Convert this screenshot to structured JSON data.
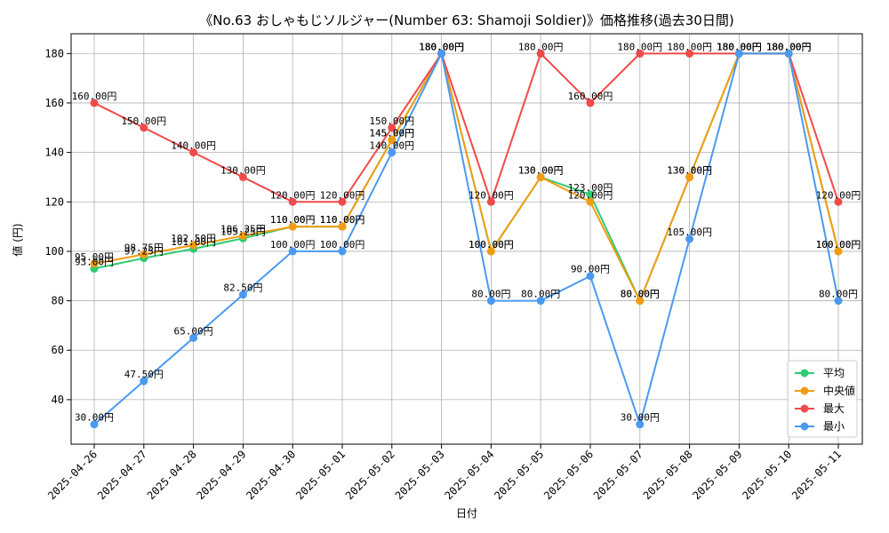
{
  "chart_data": {
    "type": "line",
    "title": "《No.63 おしゃもじソルジャー(Number 63: Shamoji Soldier)》価格推移(過去30日間)",
    "xlabel": "日付",
    "ylabel": "値 (円)",
    "label_suffix": "円",
    "ylim": [
      22,
      188
    ],
    "yticks": [
      40,
      60,
      80,
      100,
      120,
      140,
      160,
      180
    ],
    "grid": true,
    "legend_position": "lower-right",
    "categories": [
      "2025-04-26",
      "2025-04-27",
      "2025-04-28",
      "2025-04-29",
      "2025-04-30",
      "2025-05-01",
      "2025-05-02",
      "2025-05-03",
      "2025-05-04",
      "2025-05-05",
      "2025-05-06",
      "2025-05-07",
      "2025-05-08",
      "2025-05-09",
      "2025-05-10",
      "2025-05-11"
    ],
    "series": [
      {
        "name": "平均",
        "color": "#2ecc71",
        "values": [
          93.0,
          97.25,
          101.0,
          105.25,
          110.0,
          110.0,
          145.0,
          180.0,
          100.0,
          130.0,
          123.0,
          80.0,
          130.0,
          180.0,
          180.0,
          100.0
        ]
      },
      {
        "name": "中央値",
        "color": "#f39c12",
        "values": [
          95.0,
          98.75,
          102.5,
          106.25,
          110.0,
          110.0,
          145.0,
          180.0,
          100.0,
          130.0,
          120.0,
          80.0,
          130.0,
          180.0,
          180.0,
          100.0
        ]
      },
      {
        "name": "最大",
        "color": "#f04a4a",
        "values": [
          160.0,
          150.0,
          140.0,
          130.0,
          120.0,
          120.0,
          150.0,
          180.0,
          120.0,
          180.0,
          160.0,
          180.0,
          180.0,
          180.0,
          180.0,
          120.0
        ]
      },
      {
        "name": "最小",
        "color": "#4a9af0",
        "values": [
          30.0,
          47.5,
          65.0,
          82.5,
          100.0,
          100.0,
          140.0,
          180.0,
          80.0,
          80.0,
          90.0,
          30.0,
          105.0,
          180.0,
          180.0,
          80.0
        ]
      }
    ]
  }
}
